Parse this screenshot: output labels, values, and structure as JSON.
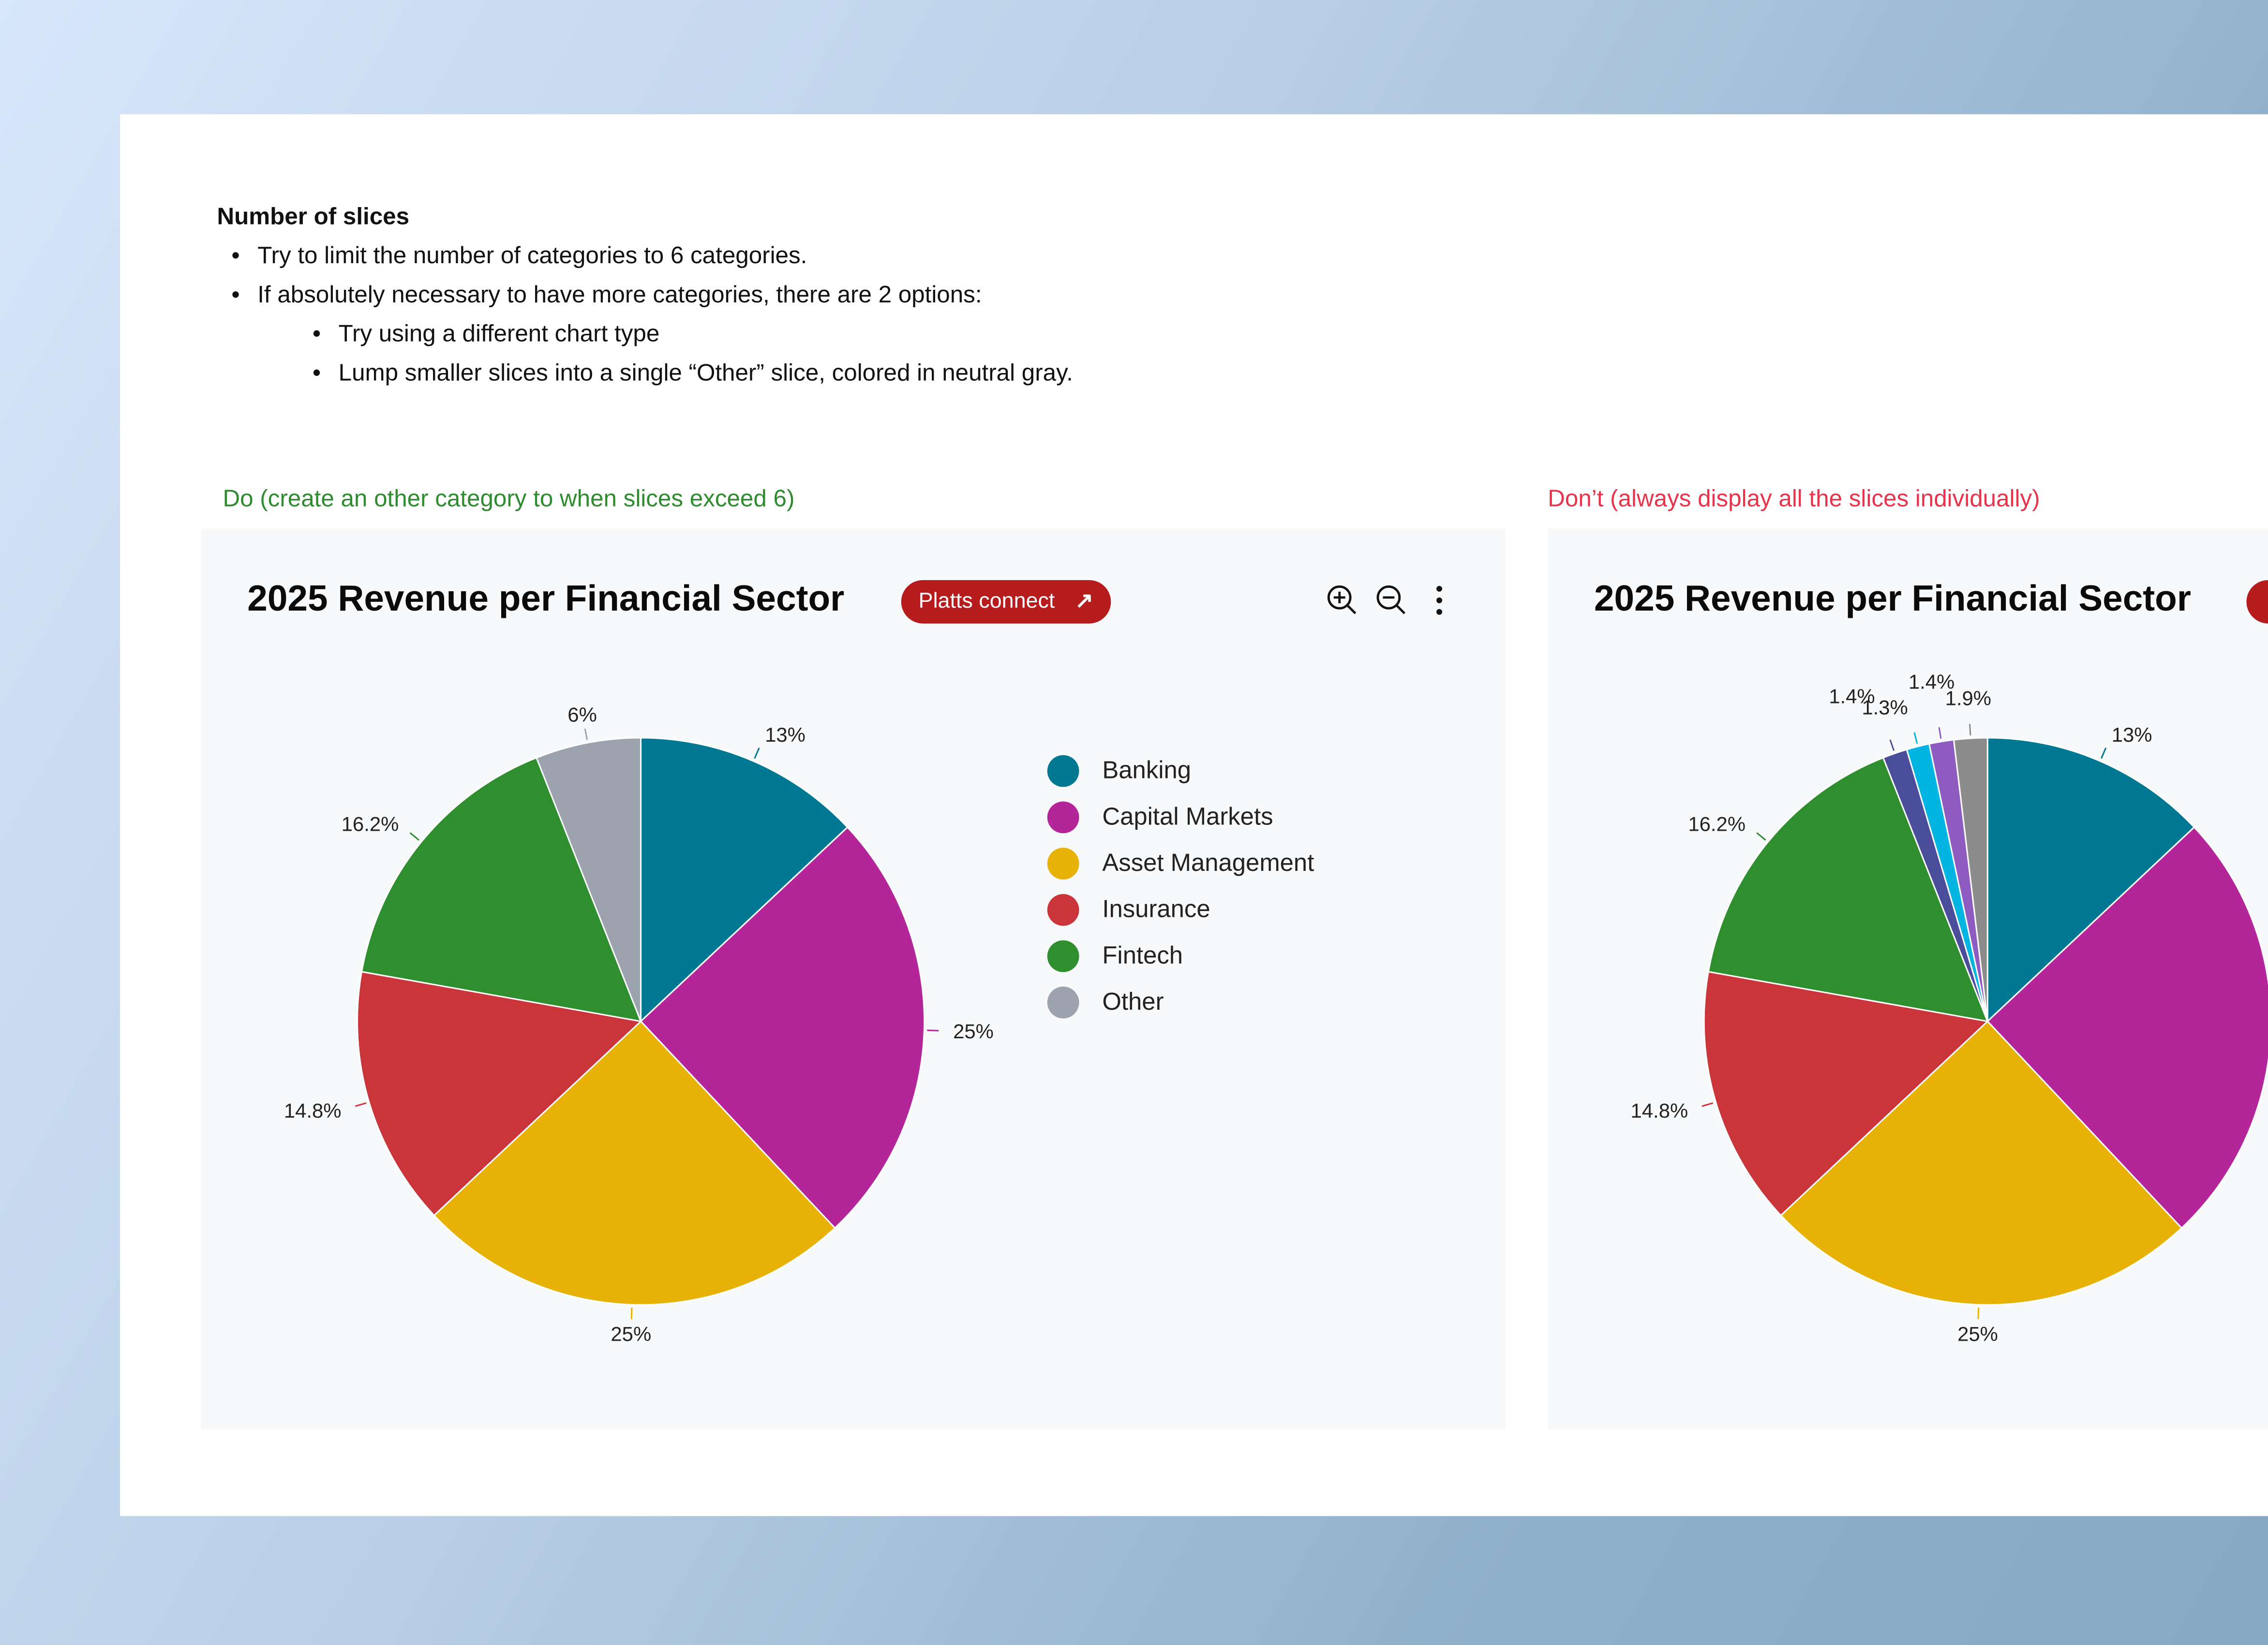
{
  "guideline": {
    "heading": "Number of slices",
    "bullets": [
      "Try to limit the number of categories to 6 categories.",
      "If absolutely necessary to have more categories, there are 2 options:"
    ],
    "sub_bullets": [
      "Try using a different chart type",
      "Lump smaller slices into a single “Other” slice, colored in neutral gray."
    ]
  },
  "do_caption": "Do (create an other category to when slices exceed 6)",
  "dont_caption": "Don’t (always display all the slices individually)",
  "colors": {
    "do": "#2e8b2e",
    "dont": "#e8334a"
  },
  "button_label": "Platts connect",
  "icons": [
    "zoom-in-icon",
    "zoom-out-icon",
    "more-vertical-icon",
    "external-link-arrow-icon"
  ],
  "chart_data": [
    {
      "type": "pie",
      "title": "2025 Revenue per Financial Sector",
      "categories": [
        "Banking",
        "Capital Markets",
        "Asset Management",
        "Insurance",
        "Fintech",
        "Other"
      ],
      "values": [
        13,
        25,
        25,
        14.8,
        16.2,
        6
      ],
      "labels": [
        "13%",
        "25%",
        "25%",
        "14.8%",
        "16.2%",
        "6%"
      ],
      "colors": [
        "#007894",
        "#b5259a",
        "#e8b106",
        "#c9353a",
        "#2f8f2f",
        "#9ca3af"
      ],
      "legend": "right"
    },
    {
      "type": "pie",
      "title": "2025 Revenue per Financial Sector",
      "values": [
        13,
        25,
        25,
        14.8,
        16.2,
        1.4,
        1.3,
        1.4,
        1.9
      ],
      "labels": [
        "13%",
        "25%",
        "25%",
        "14.8%",
        "16.2%",
        "1.4%",
        "1.3%",
        "1.4%",
        "1.9%"
      ],
      "colors": [
        "#007894",
        "#b5259a",
        "#e8b106",
        "#c9353a",
        "#2f8f2f",
        "#4a4e9a",
        "#00b5e2",
        "#8e5cc0",
        "#8c8c8c"
      ]
    }
  ]
}
